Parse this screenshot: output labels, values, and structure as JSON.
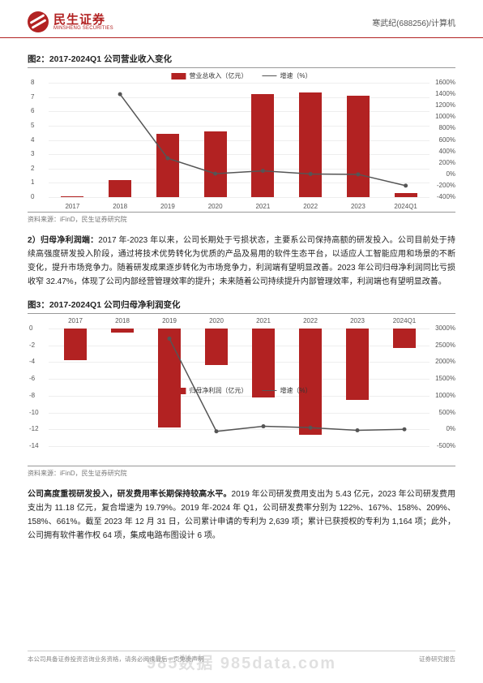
{
  "header": {
    "logo_cn": "民生证券",
    "logo_en": "MINSHENG SECURITIES",
    "stock": "寒武纪(688256)/计算机"
  },
  "fig2": {
    "title": "图2：2017-2024Q1 公司营业收入变化",
    "type": "bar+line",
    "legend_bar": "营业总收入（亿元）",
    "legend_line": "增速（%）",
    "categories": [
      "2017",
      "2018",
      "2019",
      "2020",
      "2021",
      "2022",
      "2023",
      "2024Q1"
    ],
    "bar_values": [
      0.08,
      1.2,
      4.4,
      4.6,
      7.2,
      7.3,
      7.1,
      0.3
    ],
    "line_values": [
      null,
      1400,
      280,
      10,
      60,
      5,
      -2,
      -200
    ],
    "y_left": {
      "min": 0,
      "max": 8,
      "step": 1
    },
    "y_right": {
      "min": -400,
      "max": 1600,
      "step": 200
    },
    "bar_color": "#b22222",
    "line_color": "#555555",
    "grid_color": "#eeeeee",
    "source": "资料来源：iFinD，民生证券研究院"
  },
  "para1": {
    "lead": "2）归母净利润端：",
    "body": "2017 年-2023 年以来，公司长期处于亏损状态，主要系公司保持高额的研发投入。公司目前处于持续高强度研发投入阶段，通过将技术优势转化为优质的产品及易用的软件生态平台，以适应人工智能应用和场景的不断变化，提升市场竞争力。随着研发成果逐步转化为市场竞争力，利润端有望明显改善。2023 年公司归母净利润同比亏损收窄 32.47%，体现了公司内部经营管理效率的提升；未来随着公司持续提升内部管理效率，利润端也有望明显改善。"
  },
  "fig3": {
    "title": "图3：2017-2024Q1 公司归母净利润变化",
    "type": "bar+line",
    "legend_bar": "归母净利润（亿元）",
    "legend_line": "增速（%）",
    "categories": [
      "2017",
      "2018",
      "2019",
      "2020",
      "2021",
      "2022",
      "2023",
      "2024Q1"
    ],
    "bar_values": [
      -3.8,
      -0.5,
      -11.8,
      -4.3,
      -8.2,
      -12.6,
      -8.5,
      -2.3
    ],
    "line_values": [
      null,
      null,
      2700,
      -60,
      90,
      50,
      -30,
      0
    ],
    "y_left": {
      "min": -14,
      "max": 0,
      "step": 2
    },
    "y_right": {
      "min": -500,
      "max": 3000,
      "step": 500
    },
    "bar_color": "#b22222",
    "line_color": "#555555",
    "grid_color": "#eeeeee",
    "source": "资料来源：iFinD，民生证券研究院"
  },
  "para2": {
    "lead": "公司高度重视研发投入，研发费用率长期保持较高水平。",
    "body": "2019 年公司研发费用支出为 5.43 亿元，2023 年公司研发费用支出为 11.18 亿元，复合增速为 19.79%。2019 年-2024 年 Q1，公司研发费率分别为 122%、167%、158%、209%、158%、661%。截至 2023 年 12 月 31 日，公司累计申请的专利为 2,639 项；累计已获授权的专利为 1,164 项；此外，公司拥有软件著作权 64 项，集成电路布图设计 6 项。"
  },
  "footer": {
    "left": "本公司具备证券投资咨询业务资格，请务必阅读最后一页免责声明",
    "right": "证券研究报告"
  },
  "watermark": "985数据  985data.com"
}
